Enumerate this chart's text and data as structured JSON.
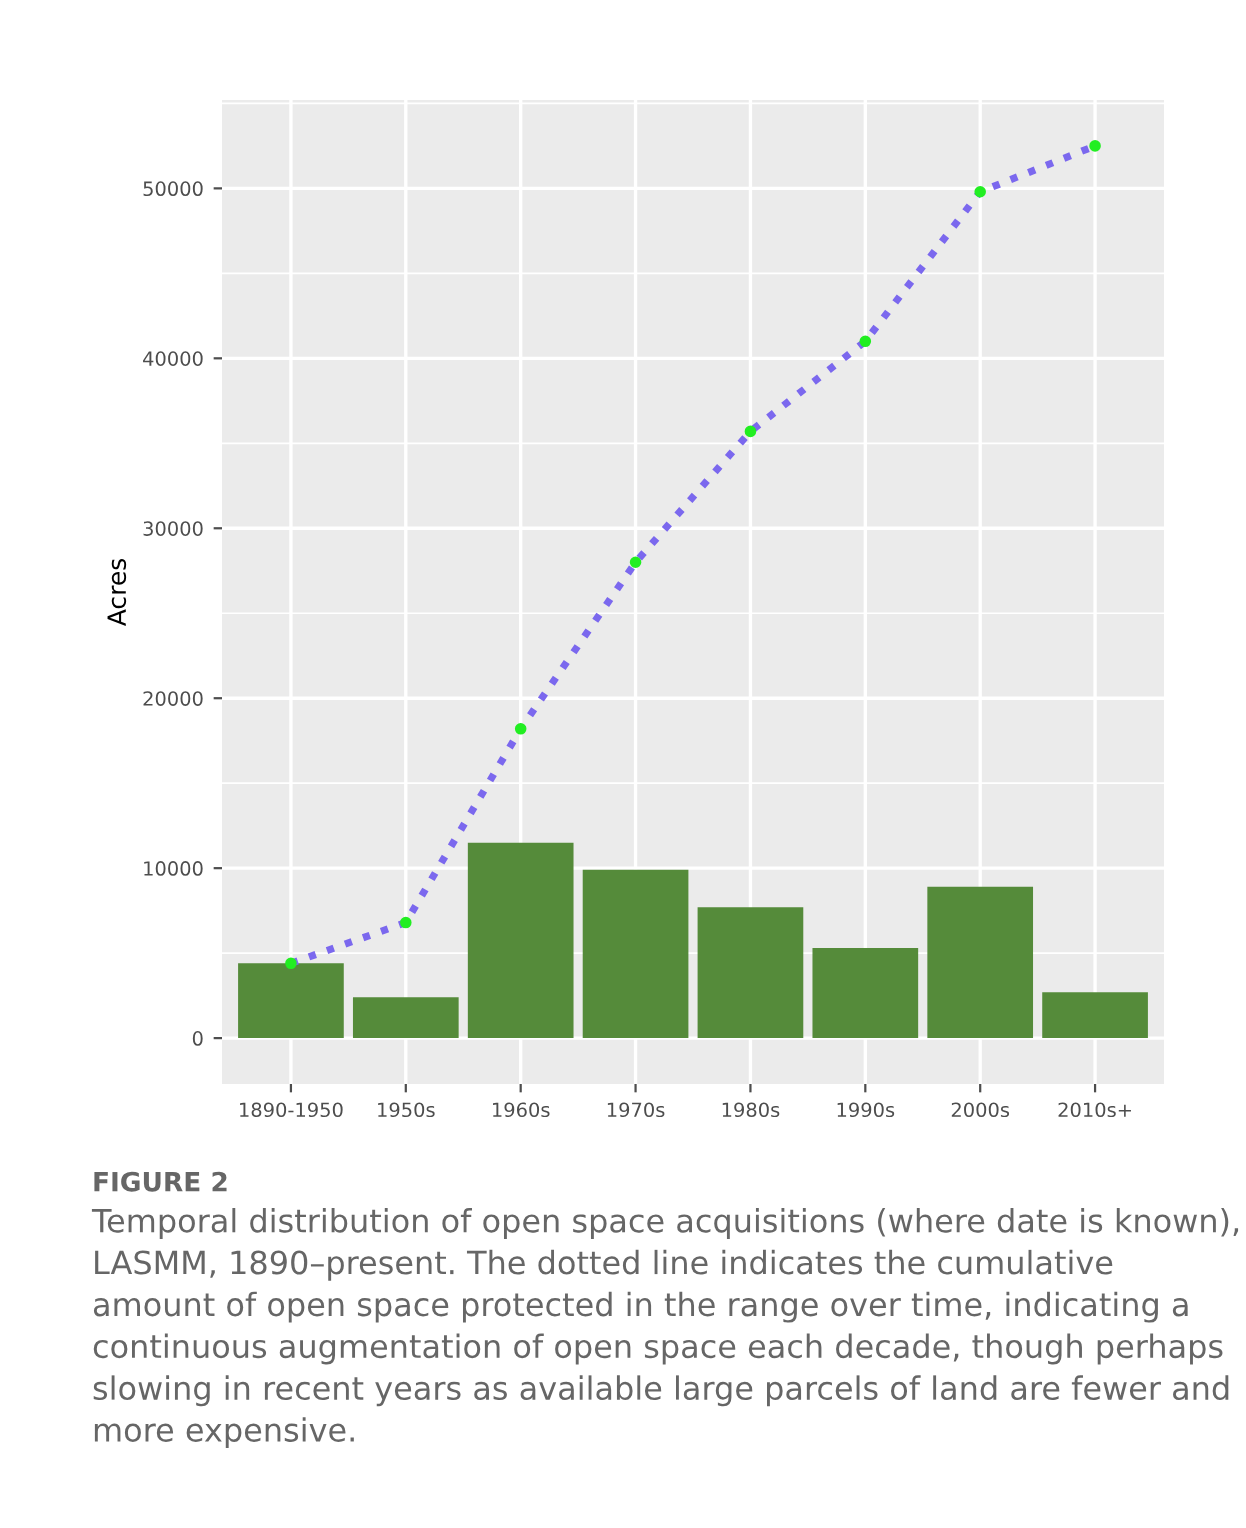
{
  "chart_data": {
    "type": "bar",
    "ylabel": "Acres",
    "categories": [
      "1890-1950",
      "1950s",
      "1960s",
      "1970s",
      "1980s",
      "1990s",
      "2000s",
      "2010s+"
    ],
    "series": [
      {
        "color": "#558b3a",
        "values": [
          4400,
          2400,
          11500,
          9900,
          7700,
          5300,
          8900,
          2700
        ]
      },
      {
        "type": "line",
        "color": "#7b68ee",
        "line_style": "dotted",
        "marker": "none",
        "values": [
          4400,
          6800,
          18200,
          28000,
          35700,
          41000,
          49800,
          52500
        ]
      },
      {
        "type": "scatter",
        "color": "#22ee22",
        "marker": "circle",
        "values": [
          4400,
          6800,
          18200,
          28000,
          35700,
          41000,
          49800,
          52500
        ]
      }
    ],
    "ylim": [
      -2700,
      55200
    ],
    "yticks": [
      0,
      10000,
      20000,
      30000,
      40000,
      50000
    ],
    "grid": true,
    "legend": false,
    "annotations": [
      "FIGURE 2",
      "Temporal distribution of open space acquisitions (where date is known), LASMM, 1890–present. The dotted line indicates the cumulative amount of open space protected in the range over time, indicating a continuous augmentation of open space each decade, though perhaps slowing in recent years as available large parcels of land are fewer and more expensive."
    ]
  }
}
